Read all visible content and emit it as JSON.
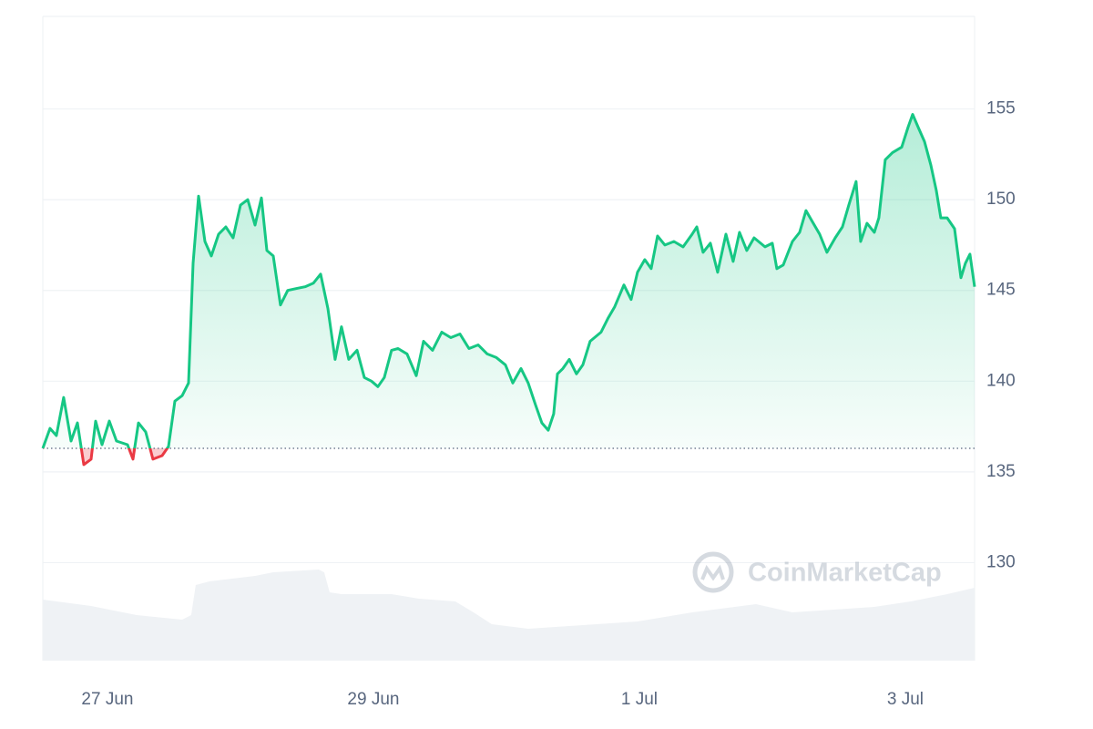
{
  "chart_data": {
    "type": "line",
    "xlim": [
      -0.486,
      6.521
    ],
    "ylim": [
      124.6,
      160.1
    ],
    "xticks": [
      {
        "value": 0,
        "label": "27 Jun"
      },
      {
        "value": 2,
        "label": "29 Jun"
      },
      {
        "value": 4,
        "label": "1 Jul"
      },
      {
        "value": 6,
        "label": "3 Jul"
      }
    ],
    "yticks": [
      130,
      135,
      140,
      145,
      150,
      155
    ],
    "grid": true,
    "baseline": 136.3,
    "up_color": "#16c784",
    "down_color": "#ea3943",
    "watermark": "CoinMarketCap",
    "series": [
      {
        "color": "#16c784",
        "x": [
          -0.486,
          -0.432,
          -0.384,
          -0.329,
          -0.274,
          -0.226,
          -0.178,
          -0.123,
          -0.089,
          -0.041,
          0.014,
          0.068,
          0.151,
          0.192,
          0.233,
          0.288,
          0.342,
          0.411,
          0.459,
          0.507,
          0.562,
          0.61,
          0.644,
          0.685,
          0.733,
          0.781,
          0.836,
          0.89,
          0.945,
          1.0,
          1.055,
          1.11,
          1.158,
          1.199,
          1.247,
          1.301,
          1.356,
          1.418,
          1.486,
          1.548,
          1.603,
          1.658,
          1.712,
          1.76,
          1.815,
          1.877,
          1.932,
          1.986,
          2.034,
          2.082,
          2.137,
          2.185,
          2.253,
          2.322,
          2.377,
          2.445,
          2.514,
          2.582,
          2.651,
          2.719,
          2.788,
          2.856,
          2.925,
          2.993,
          3.048,
          3.11,
          3.164,
          3.219,
          3.267,
          3.315,
          3.356,
          3.384,
          3.425,
          3.473,
          3.527,
          3.575,
          3.63,
          3.712,
          3.767,
          3.815,
          3.884,
          3.938,
          3.986,
          4.041,
          4.089,
          4.137,
          4.192,
          4.26,
          4.329,
          4.397,
          4.432,
          4.479,
          4.534,
          4.589,
          4.651,
          4.705,
          4.753,
          4.808,
          4.863,
          4.945,
          5.0,
          5.034,
          5.082,
          5.151,
          5.205,
          5.253,
          5.308,
          5.356,
          5.411,
          5.473,
          5.527,
          5.575,
          5.63,
          5.664,
          5.712,
          5.767,
          5.801,
          5.849,
          5.904,
          5.973,
          6.021,
          6.055,
          6.096,
          6.144,
          6.192,
          6.233,
          6.267,
          6.315,
          6.37,
          6.418,
          6.452,
          6.486,
          6.521
        ],
        "values": [
          136.3,
          137.4,
          137.0,
          139.1,
          136.7,
          137.7,
          135.4,
          135.7,
          137.8,
          136.5,
          137.8,
          136.7,
          136.5,
          135.7,
          137.7,
          137.2,
          135.7,
          135.9,
          136.4,
          138.9,
          139.2,
          139.9,
          146.5,
          150.2,
          147.7,
          146.9,
          148.1,
          148.5,
          147.9,
          149.7,
          150.0,
          148.6,
          150.1,
          147.2,
          146.9,
          144.2,
          145.0,
          145.1,
          145.2,
          145.4,
          145.9,
          144.0,
          141.2,
          143.0,
          141.2,
          141.7,
          140.2,
          140.0,
          139.7,
          140.2,
          141.7,
          141.8,
          141.5,
          140.3,
          142.2,
          141.7,
          142.7,
          142.4,
          142.6,
          141.8,
          142.0,
          141.5,
          141.3,
          140.9,
          139.9,
          140.7,
          139.9,
          138.7,
          137.7,
          137.3,
          138.2,
          140.4,
          140.7,
          141.2,
          140.4,
          140.9,
          142.2,
          142.7,
          143.5,
          144.1,
          145.3,
          144.5,
          146.0,
          146.7,
          146.2,
          148.0,
          147.5,
          147.7,
          147.4,
          148.1,
          148.5,
          147.1,
          147.6,
          146.0,
          148.1,
          146.6,
          148.2,
          147.2,
          147.9,
          147.4,
          147.6,
          146.2,
          146.4,
          147.7,
          148.2,
          149.4,
          148.7,
          148.1,
          147.1,
          147.9,
          148.5,
          149.7,
          151.0,
          147.7,
          148.7,
          148.2,
          149.0,
          152.2,
          152.6,
          152.9,
          154.0,
          154.7,
          154.0,
          153.2,
          151.9,
          150.5,
          149.0,
          149.0,
          148.4,
          145.7,
          146.5,
          147.0,
          145.2
        ]
      }
    ],
    "volume": {
      "color": "#eff2f5",
      "ylim": [
        0,
        707
      ],
      "x": [
        -0.486,
        -0.123,
        0.219,
        0.562,
        0.63,
        0.664,
        0.767,
        1.11,
        1.247,
        1.589,
        1.63,
        1.671,
        1.76,
        2.137,
        2.342,
        2.616,
        2.753,
        2.89,
        3.164,
        3.575,
        3.986,
        4.397,
        4.877,
        5.151,
        5.767,
        6.041,
        6.315,
        6.521
      ],
      "values": [
        67,
        60,
        50,
        45,
        50,
        83,
        87,
        93,
        97,
        100,
        97,
        75,
        73,
        73,
        68,
        65,
        53,
        40,
        35,
        39,
        43,
        53,
        62,
        53,
        59,
        65,
        73,
        80
      ]
    }
  }
}
